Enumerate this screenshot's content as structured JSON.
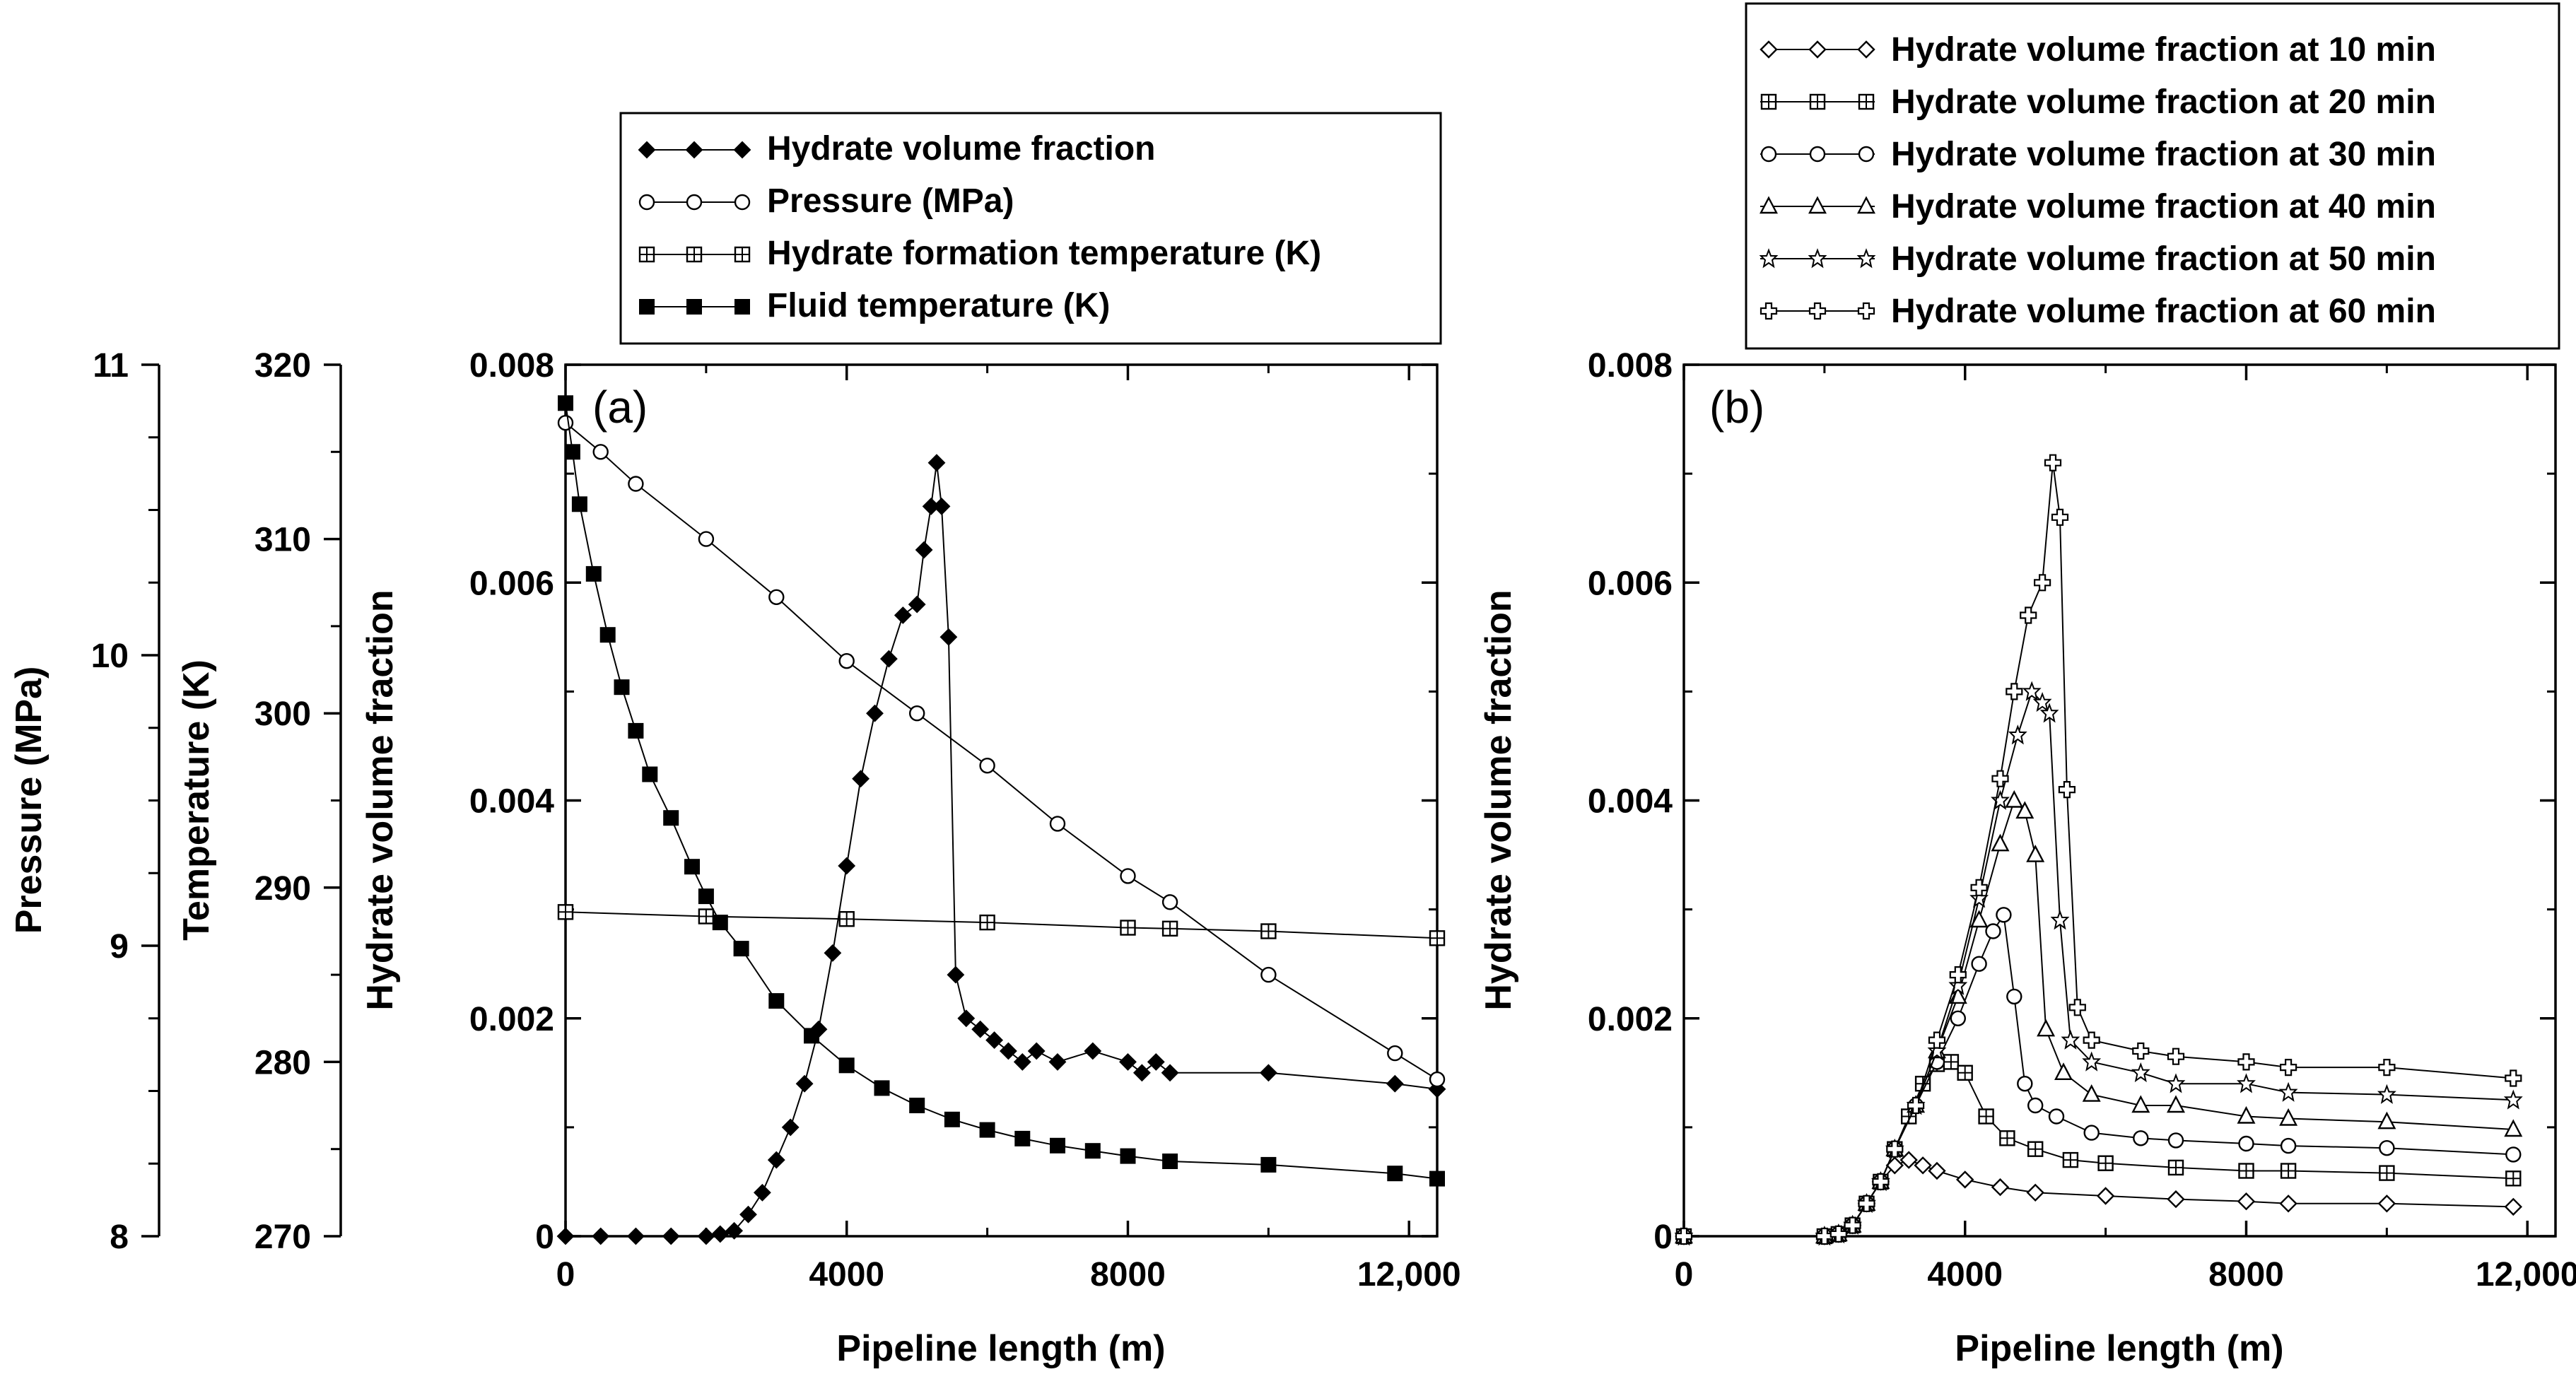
{
  "chart_data": [
    {
      "panel": "a",
      "type": "line",
      "panel_label": "(a)",
      "xlabel": "Pipeline length (m)",
      "ylabel": "Hydrate volume fraction",
      "xlim": [
        0,
        12400
      ],
      "xticks": [
        "0",
        "4000",
        "8000",
        "12,000"
      ],
      "ylim": [
        0,
        0.008
      ],
      "yticks": [
        "0",
        "0.002",
        "0.004",
        "0.006",
        "0.008"
      ],
      "extra_axes": [
        {
          "label": "Temperature (K)",
          "range": [
            270,
            320
          ],
          "ticks": [
            "270",
            "280",
            "290",
            "300",
            "310",
            "320"
          ]
        },
        {
          "label": "Pressure (MPa)",
          "range": [
            8,
            11
          ],
          "ticks": [
            "8",
            "9",
            "10",
            "11"
          ]
        }
      ],
      "legend": [
        "Hydrate volume fraction",
        "Pressure (MPa)",
        "Hydrate formation temperature (K)",
        "Fluid temperature (K)"
      ],
      "series": [
        {
          "name": "Hydrate volume fraction",
          "axis": "hydrate",
          "marker": "diamond-filled",
          "x": [
            0,
            500,
            1000,
            1500,
            2000,
            2200,
            2400,
            2600,
            2800,
            3000,
            3200,
            3400,
            3600,
            3800,
            4000,
            4200,
            4400,
            4600,
            4800,
            5000,
            5100,
            5200,
            5280,
            5350,
            5450,
            5550,
            5700,
            5900,
            6100,
            6300,
            6500,
            6700,
            7000,
            7500,
            8000,
            8200,
            8400,
            8600,
            10000,
            11800,
            12400
          ],
          "values": [
            0,
            0,
            0,
            0,
            0,
            2e-05,
            5e-05,
            0.0002,
            0.0004,
            0.0007,
            0.001,
            0.0014,
            0.0019,
            0.0026,
            0.0034,
            0.0042,
            0.0048,
            0.0053,
            0.0057,
            0.0058,
            0.0063,
            0.0067,
            0.0071,
            0.0067,
            0.0055,
            0.0024,
            0.002,
            0.0019,
            0.0018,
            0.0017,
            0.0016,
            0.0017,
            0.0016,
            0.0017,
            0.0016,
            0.0015,
            0.0016,
            0.0015,
            0.0015,
            0.0014,
            0.00135
          ]
        },
        {
          "name": "Pressure (MPa)",
          "axis": "pressure",
          "marker": "circle-open",
          "x": [
            0,
            500,
            1000,
            2000,
            3000,
            4000,
            5000,
            6000,
            7000,
            8000,
            8600,
            10000,
            11800,
            12400
          ],
          "values": [
            10.8,
            10.7,
            10.59,
            10.4,
            10.2,
            9.98,
            9.8,
            9.62,
            9.42,
            9.24,
            9.15,
            8.9,
            8.63,
            8.54
          ]
        },
        {
          "name": "Hydrate formation temperature (K)",
          "axis": "temperature",
          "marker": "square-cross",
          "x": [
            0,
            2000,
            4000,
            6000,
            8000,
            8600,
            10000,
            12400
          ],
          "values": [
            288.6,
            288.35,
            288.2,
            288.0,
            287.7,
            287.65,
            287.5,
            287.1
          ]
        },
        {
          "name": "Fluid temperature (K)",
          "axis": "temperature",
          "marker": "square-filled",
          "x": [
            0,
            100,
            200,
            400,
            600,
            800,
            1000,
            1200,
            1500,
            1800,
            2000,
            2200,
            2500,
            3000,
            3500,
            4000,
            4500,
            5000,
            5500,
            6000,
            6500,
            7000,
            7500,
            8000,
            8600,
            10000,
            11800,
            12400
          ],
          "values": [
            317.8,
            315,
            312,
            308,
            304.5,
            301.5,
            299,
            296.5,
            294,
            291.2,
            289.5,
            288,
            286.5,
            283.5,
            281.5,
            279.8,
            278.5,
            277.5,
            276.7,
            276.1,
            275.6,
            275.2,
            274.9,
            274.6,
            274.3,
            274.1,
            273.6,
            273.3
          ]
        }
      ]
    },
    {
      "panel": "b",
      "type": "line",
      "panel_label": "(b)",
      "xlabel": "Pipeline length (m)",
      "ylabel": "Hydrate volume fraction",
      "xlim": [
        0,
        12400
      ],
      "xticks": [
        "0",
        "4000",
        "8000",
        "12,000"
      ],
      "ylim": [
        0,
        0.008
      ],
      "yticks": [
        "0",
        "0.002",
        "0.004",
        "0.006",
        "0.008"
      ],
      "legend": [
        "Hydrate volume fraction at 10 min",
        "Hydrate volume fraction at 20 min",
        "Hydrate volume fraction at 30 min",
        "Hydrate volume fraction at 40 min",
        "Hydrate volume fraction at 50 min",
        "Hydrate volume fraction at 60 min"
      ],
      "series": [
        {
          "name": "Hydrate volume fraction at 10 min",
          "marker": "diamond-open",
          "x": [
            0,
            2000,
            2200,
            2400,
            2600,
            2800,
            3000,
            3200,
            3400,
            3600,
            4000,
            4500,
            5000,
            6000,
            7000,
            8000,
            8600,
            10000,
            11800
          ],
          "values": [
            0,
            0,
            2e-05,
            0.0001,
            0.0003,
            0.0005,
            0.00065,
            0.0007,
            0.00065,
            0.0006,
            0.00052,
            0.00045,
            0.0004,
            0.00037,
            0.00034,
            0.00032,
            0.0003,
            0.0003,
            0.00027
          ]
        },
        {
          "name": "Hydrate volume fraction at 20 min",
          "marker": "square-cross",
          "x": [
            0,
            2000,
            2200,
            2400,
            2600,
            2800,
            3000,
            3200,
            3400,
            3600,
            3800,
            4000,
            4300,
            4600,
            5000,
            5500,
            6000,
            7000,
            8000,
            8600,
            10000,
            11800
          ],
          "values": [
            0,
            0,
            2e-05,
            0.0001,
            0.0003,
            0.0005,
            0.0008,
            0.0011,
            0.0014,
            0.00158,
            0.0016,
            0.0015,
            0.0011,
            0.0009,
            0.0008,
            0.0007,
            0.00067,
            0.00063,
            0.0006,
            0.0006,
            0.00058,
            0.00053
          ]
        },
        {
          "name": "Hydrate volume fraction at 30 min",
          "marker": "circle-open",
          "x": [
            0,
            2000,
            2200,
            2400,
            2600,
            2800,
            3000,
            3300,
            3600,
            3900,
            4200,
            4400,
            4550,
            4700,
            4850,
            5000,
            5300,
            5800,
            6500,
            7000,
            8000,
            8600,
            10000,
            11800
          ],
          "values": [
            0,
            0,
            2e-05,
            0.0001,
            0.0003,
            0.0005,
            0.0008,
            0.0012,
            0.0016,
            0.002,
            0.0025,
            0.0028,
            0.00295,
            0.0022,
            0.0014,
            0.0012,
            0.0011,
            0.00095,
            0.0009,
            0.00088,
            0.00085,
            0.00083,
            0.00081,
            0.00075
          ]
        },
        {
          "name": "Hydrate volume fraction at 40 min",
          "marker": "triangle-open",
          "x": [
            0,
            2000,
            2200,
            2400,
            2600,
            2800,
            3000,
            3300,
            3600,
            3900,
            4200,
            4500,
            4700,
            4850,
            5000,
            5150,
            5400,
            5800,
            6500,
            7000,
            8000,
            8600,
            10000,
            11800
          ],
          "values": [
            0,
            0,
            2e-05,
            0.0001,
            0.0003,
            0.0005,
            0.0008,
            0.0012,
            0.0017,
            0.0022,
            0.0029,
            0.0036,
            0.004,
            0.0039,
            0.0035,
            0.0019,
            0.0015,
            0.0013,
            0.0012,
            0.0012,
            0.0011,
            0.00108,
            0.00105,
            0.00098
          ]
        },
        {
          "name": "Hydrate volume fraction at 50 min",
          "marker": "star-open",
          "x": [
            0,
            2000,
            2200,
            2400,
            2600,
            2800,
            3000,
            3300,
            3600,
            3900,
            4200,
            4500,
            4750,
            4950,
            5100,
            5200,
            5350,
            5500,
            5800,
            6500,
            7000,
            8000,
            8600,
            10000,
            11800
          ],
          "values": [
            0,
            0,
            2e-05,
            0.0001,
            0.0003,
            0.0005,
            0.0008,
            0.0012,
            0.0017,
            0.0023,
            0.0031,
            0.004,
            0.0046,
            0.005,
            0.0049,
            0.0048,
            0.0029,
            0.0018,
            0.0016,
            0.0015,
            0.0014,
            0.0014,
            0.00132,
            0.0013,
            0.00125
          ]
        },
        {
          "name": "Hydrate volume fraction at 60 min",
          "marker": "plus-open",
          "x": [
            0,
            2000,
            2200,
            2400,
            2600,
            2800,
            3000,
            3300,
            3600,
            3900,
            4200,
            4500,
            4700,
            4900,
            5100,
            5250,
            5350,
            5450,
            5600,
            5800,
            6500,
            7000,
            8000,
            8600,
            10000,
            11800
          ],
          "values": [
            0,
            0,
            2e-05,
            0.0001,
            0.0003,
            0.0005,
            0.0008,
            0.0012,
            0.0018,
            0.0024,
            0.0032,
            0.0042,
            0.005,
            0.0057,
            0.006,
            0.0071,
            0.0066,
            0.0041,
            0.0021,
            0.0018,
            0.0017,
            0.00165,
            0.0016,
            0.00155,
            0.00155,
            0.00145
          ]
        }
      ]
    }
  ]
}
